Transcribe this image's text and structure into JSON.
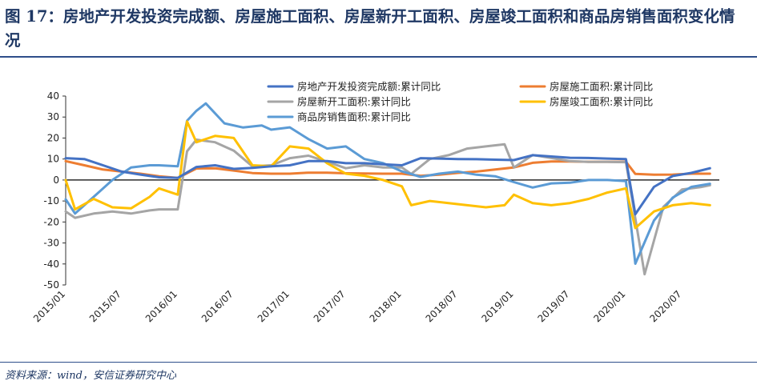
{
  "title": "图 17：房地产开发投资完成额、房屋施工面积、房屋新开工面积、房屋竣工面积和商品房销售面积变化情况",
  "source": "资料来源：wind，安信证券研究中心",
  "colors": {
    "title": "#1f3864",
    "rule": "#2e4e8a",
    "investment": "#4472c4",
    "construction": "#ed7d31",
    "new_start": "#a5a5a5",
    "completed": "#ffc000",
    "sales": "#5b9bd5"
  },
  "chart_data": {
    "type": "line",
    "ylim": [
      -50,
      40
    ],
    "yticks": [
      40,
      30,
      20,
      10,
      0,
      -10,
      -20,
      -30,
      -40,
      -50
    ],
    "xlim": [
      "2015/01",
      "2020/11"
    ],
    "xticks": [
      "2015/01",
      "2015/07",
      "2016/01",
      "2016/07",
      "2017/01",
      "2017/07",
      "2018/01",
      "2018/07",
      "2019/01",
      "2019/07",
      "2020/01",
      "2020/07"
    ],
    "legend_position": "top",
    "grid": false,
    "series": [
      {
        "name": "房地产开发投资完成额:累计同比",
        "color": "#4472c4",
        "points": [
          [
            "2015/01",
            10.4
          ],
          [
            "2015/03",
            10.0
          ],
          [
            "2015/05",
            7.0
          ],
          [
            "2015/07",
            4.0
          ],
          [
            "2015/09",
            2.6
          ],
          [
            "2015/11",
            1.3
          ],
          [
            "2016/01",
            1.0
          ],
          [
            "2016/03",
            6.2
          ],
          [
            "2016/05",
            7.0
          ],
          [
            "2016/07",
            5.3
          ],
          [
            "2016/09",
            5.8
          ],
          [
            "2016/11",
            6.5
          ],
          [
            "2017/01",
            7.0
          ],
          [
            "2017/03",
            9.0
          ],
          [
            "2017/05",
            9.0
          ],
          [
            "2017/07",
            8.0
          ],
          [
            "2017/09",
            8.0
          ],
          [
            "2017/11",
            7.5
          ],
          [
            "2018/01",
            7.0
          ],
          [
            "2018/03",
            10.4
          ],
          [
            "2018/05",
            10.2
          ],
          [
            "2018/07",
            10.0
          ],
          [
            "2018/09",
            9.9
          ],
          [
            "2018/11",
            9.7
          ],
          [
            "2019/01",
            9.5
          ],
          [
            "2019/03",
            11.8
          ],
          [
            "2019/05",
            11.2
          ],
          [
            "2019/07",
            10.6
          ],
          [
            "2019/09",
            10.5
          ],
          [
            "2019/11",
            10.2
          ],
          [
            "2020/01",
            10.0
          ],
          [
            "2020/02",
            -16.3
          ],
          [
            "2020/04",
            -3.3
          ],
          [
            "2020/06",
            1.9
          ],
          [
            "2020/08",
            3.4
          ],
          [
            "2020/10",
            5.6
          ]
        ]
      },
      {
        "name": "房屋施工面积:累计同比",
        "color": "#ed7d31",
        "points": [
          [
            "2015/01",
            9.0
          ],
          [
            "2015/03",
            7.0
          ],
          [
            "2015/05",
            5.0
          ],
          [
            "2015/07",
            4.0
          ],
          [
            "2015/09",
            3.0
          ],
          [
            "2015/11",
            1.8
          ],
          [
            "2016/01",
            1.0
          ],
          [
            "2016/03",
            5.5
          ],
          [
            "2016/05",
            5.6
          ],
          [
            "2016/07",
            4.5
          ],
          [
            "2016/09",
            3.3
          ],
          [
            "2016/11",
            3.0
          ],
          [
            "2017/01",
            3.0
          ],
          [
            "2017/03",
            3.5
          ],
          [
            "2017/05",
            3.5
          ],
          [
            "2017/07",
            3.2
          ],
          [
            "2017/09",
            3.1
          ],
          [
            "2017/11",
            3.0
          ],
          [
            "2018/01",
            3.0
          ],
          [
            "2018/03",
            2.0
          ],
          [
            "2018/05",
            2.5
          ],
          [
            "2018/07",
            3.4
          ],
          [
            "2018/09",
            4.0
          ],
          [
            "2018/11",
            5.0
          ],
          [
            "2019/01",
            6.0
          ],
          [
            "2019/03",
            8.2
          ],
          [
            "2019/05",
            8.8
          ],
          [
            "2019/07",
            8.8
          ],
          [
            "2019/09",
            8.7
          ],
          [
            "2019/11",
            8.7
          ],
          [
            "2020/01",
            8.7
          ],
          [
            "2020/02",
            2.9
          ],
          [
            "2020/04",
            2.5
          ],
          [
            "2020/06",
            2.6
          ],
          [
            "2020/08",
            3.0
          ],
          [
            "2020/10",
            3.0
          ]
        ]
      },
      {
        "name": "房屋新开工面积:累计同比",
        "color": "#a5a5a5",
        "points": [
          [
            "2015/01",
            -15.0
          ],
          [
            "2015/02",
            -18.0
          ],
          [
            "2015/04",
            -16.0
          ],
          [
            "2015/06",
            -15.0
          ],
          [
            "2015/08",
            -16.0
          ],
          [
            "2015/10",
            -14.5
          ],
          [
            "2015/11",
            -14.0
          ],
          [
            "2016/01",
            -14.0
          ],
          [
            "2016/02",
            13.7
          ],
          [
            "2016/03",
            19.2
          ],
          [
            "2016/05",
            18.0
          ],
          [
            "2016/07",
            14.0
          ],
          [
            "2016/09",
            6.5
          ],
          [
            "2016/11",
            7.0
          ],
          [
            "2017/01",
            10.4
          ],
          [
            "2017/03",
            11.6
          ],
          [
            "2017/05",
            8.7
          ],
          [
            "2017/07",
            5.6
          ],
          [
            "2017/09",
            7.0
          ],
          [
            "2017/11",
            6.0
          ],
          [
            "2018/01",
            6.0
          ],
          [
            "2018/02",
            2.9
          ],
          [
            "2018/04",
            10.0
          ],
          [
            "2018/06",
            11.8
          ],
          [
            "2018/08",
            15.0
          ],
          [
            "2018/10",
            16.0
          ],
          [
            "2018/12",
            17.0
          ],
          [
            "2019/01",
            6.0
          ],
          [
            "2019/03",
            11.9
          ],
          [
            "2019/05",
            10.5
          ],
          [
            "2019/07",
            9.0
          ],
          [
            "2019/09",
            8.6
          ],
          [
            "2019/11",
            8.6
          ],
          [
            "2020/01",
            8.5
          ],
          [
            "2020/03",
            -44.9
          ],
          [
            "2020/05",
            -12.8
          ],
          [
            "2020/07",
            -4.5
          ],
          [
            "2020/09",
            -3.4
          ],
          [
            "2020/10",
            -2.5
          ]
        ]
      },
      {
        "name": "房屋竣工面积:累计同比",
        "color": "#ffc000",
        "points": [
          [
            "2015/01",
            0.0
          ],
          [
            "2015/02",
            -14.0
          ],
          [
            "2015/04",
            -9.0
          ],
          [
            "2015/06",
            -13.0
          ],
          [
            "2015/08",
            -13.5
          ],
          [
            "2015/10",
            -8.0
          ],
          [
            "2015/11",
            -4.0
          ],
          [
            "2016/01",
            -7.0
          ],
          [
            "2016/02",
            27.9
          ],
          [
            "2016/03",
            18.0
          ],
          [
            "2016/05",
            21.0
          ],
          [
            "2016/07",
            20.0
          ],
          [
            "2016/09",
            7.0
          ],
          [
            "2016/11",
            6.5
          ],
          [
            "2017/01",
            16.0
          ],
          [
            "2017/03",
            15.0
          ],
          [
            "2017/05",
            8.0
          ],
          [
            "2017/07",
            3.0
          ],
          [
            "2017/09",
            2.0
          ],
          [
            "2017/11",
            0.0
          ],
          [
            "2018/01",
            -3.0
          ],
          [
            "2018/02",
            -12.0
          ],
          [
            "2018/04",
            -10.0
          ],
          [
            "2018/06",
            -11.0
          ],
          [
            "2018/08",
            -12.0
          ],
          [
            "2018/10",
            -13.0
          ],
          [
            "2018/12",
            -12.0
          ],
          [
            "2019/01",
            -7.0
          ],
          [
            "2019/03",
            -11.0
          ],
          [
            "2019/05",
            -12.0
          ],
          [
            "2019/07",
            -11.0
          ],
          [
            "2019/09",
            -9.0
          ],
          [
            "2019/11",
            -6.0
          ],
          [
            "2020/01",
            -4.0
          ],
          [
            "2020/02",
            -22.9
          ],
          [
            "2020/04",
            -15.0
          ],
          [
            "2020/06",
            -12.0
          ],
          [
            "2020/08",
            -11.0
          ],
          [
            "2020/10",
            -12.0
          ]
        ]
      },
      {
        "name": "商品房销售面积:累计同比",
        "color": "#5b9bd5",
        "points": [
          [
            "2015/01",
            -9.2
          ],
          [
            "2015/02",
            -16.0
          ],
          [
            "2015/04",
            -8.0
          ],
          [
            "2015/06",
            0.0
          ],
          [
            "2015/08",
            6.0
          ],
          [
            "2015/10",
            7.0
          ],
          [
            "2015/11",
            7.0
          ],
          [
            "2016/01",
            6.5
          ],
          [
            "2016/02",
            28.2
          ],
          [
            "2016/03",
            33.0
          ],
          [
            "2016/04",
            36.5
          ],
          [
            "2016/06",
            27.0
          ],
          [
            "2016/08",
            25.0
          ],
          [
            "2016/10",
            26.0
          ],
          [
            "2016/11",
            24.0
          ],
          [
            "2017/01",
            25.1
          ],
          [
            "2017/03",
            19.5
          ],
          [
            "2017/05",
            15.0
          ],
          [
            "2017/07",
            16.0
          ],
          [
            "2017/09",
            10.0
          ],
          [
            "2017/11",
            8.0
          ],
          [
            "2018/01",
            4.1
          ],
          [
            "2018/03",
            1.5
          ],
          [
            "2018/05",
            3.0
          ],
          [
            "2018/07",
            4.0
          ],
          [
            "2018/09",
            2.5
          ],
          [
            "2018/11",
            1.8
          ],
          [
            "2019/01",
            -1.0
          ],
          [
            "2019/03",
            -3.6
          ],
          [
            "2019/05",
            -1.6
          ],
          [
            "2019/07",
            -1.3
          ],
          [
            "2019/09",
            0.0
          ],
          [
            "2019/11",
            0.0
          ],
          [
            "2020/01",
            -0.5
          ],
          [
            "2020/02",
            -39.9
          ],
          [
            "2020/04",
            -19.3
          ],
          [
            "2020/06",
            -8.4
          ],
          [
            "2020/08",
            -3.3
          ],
          [
            "2020/10",
            -1.8
          ]
        ]
      }
    ]
  }
}
